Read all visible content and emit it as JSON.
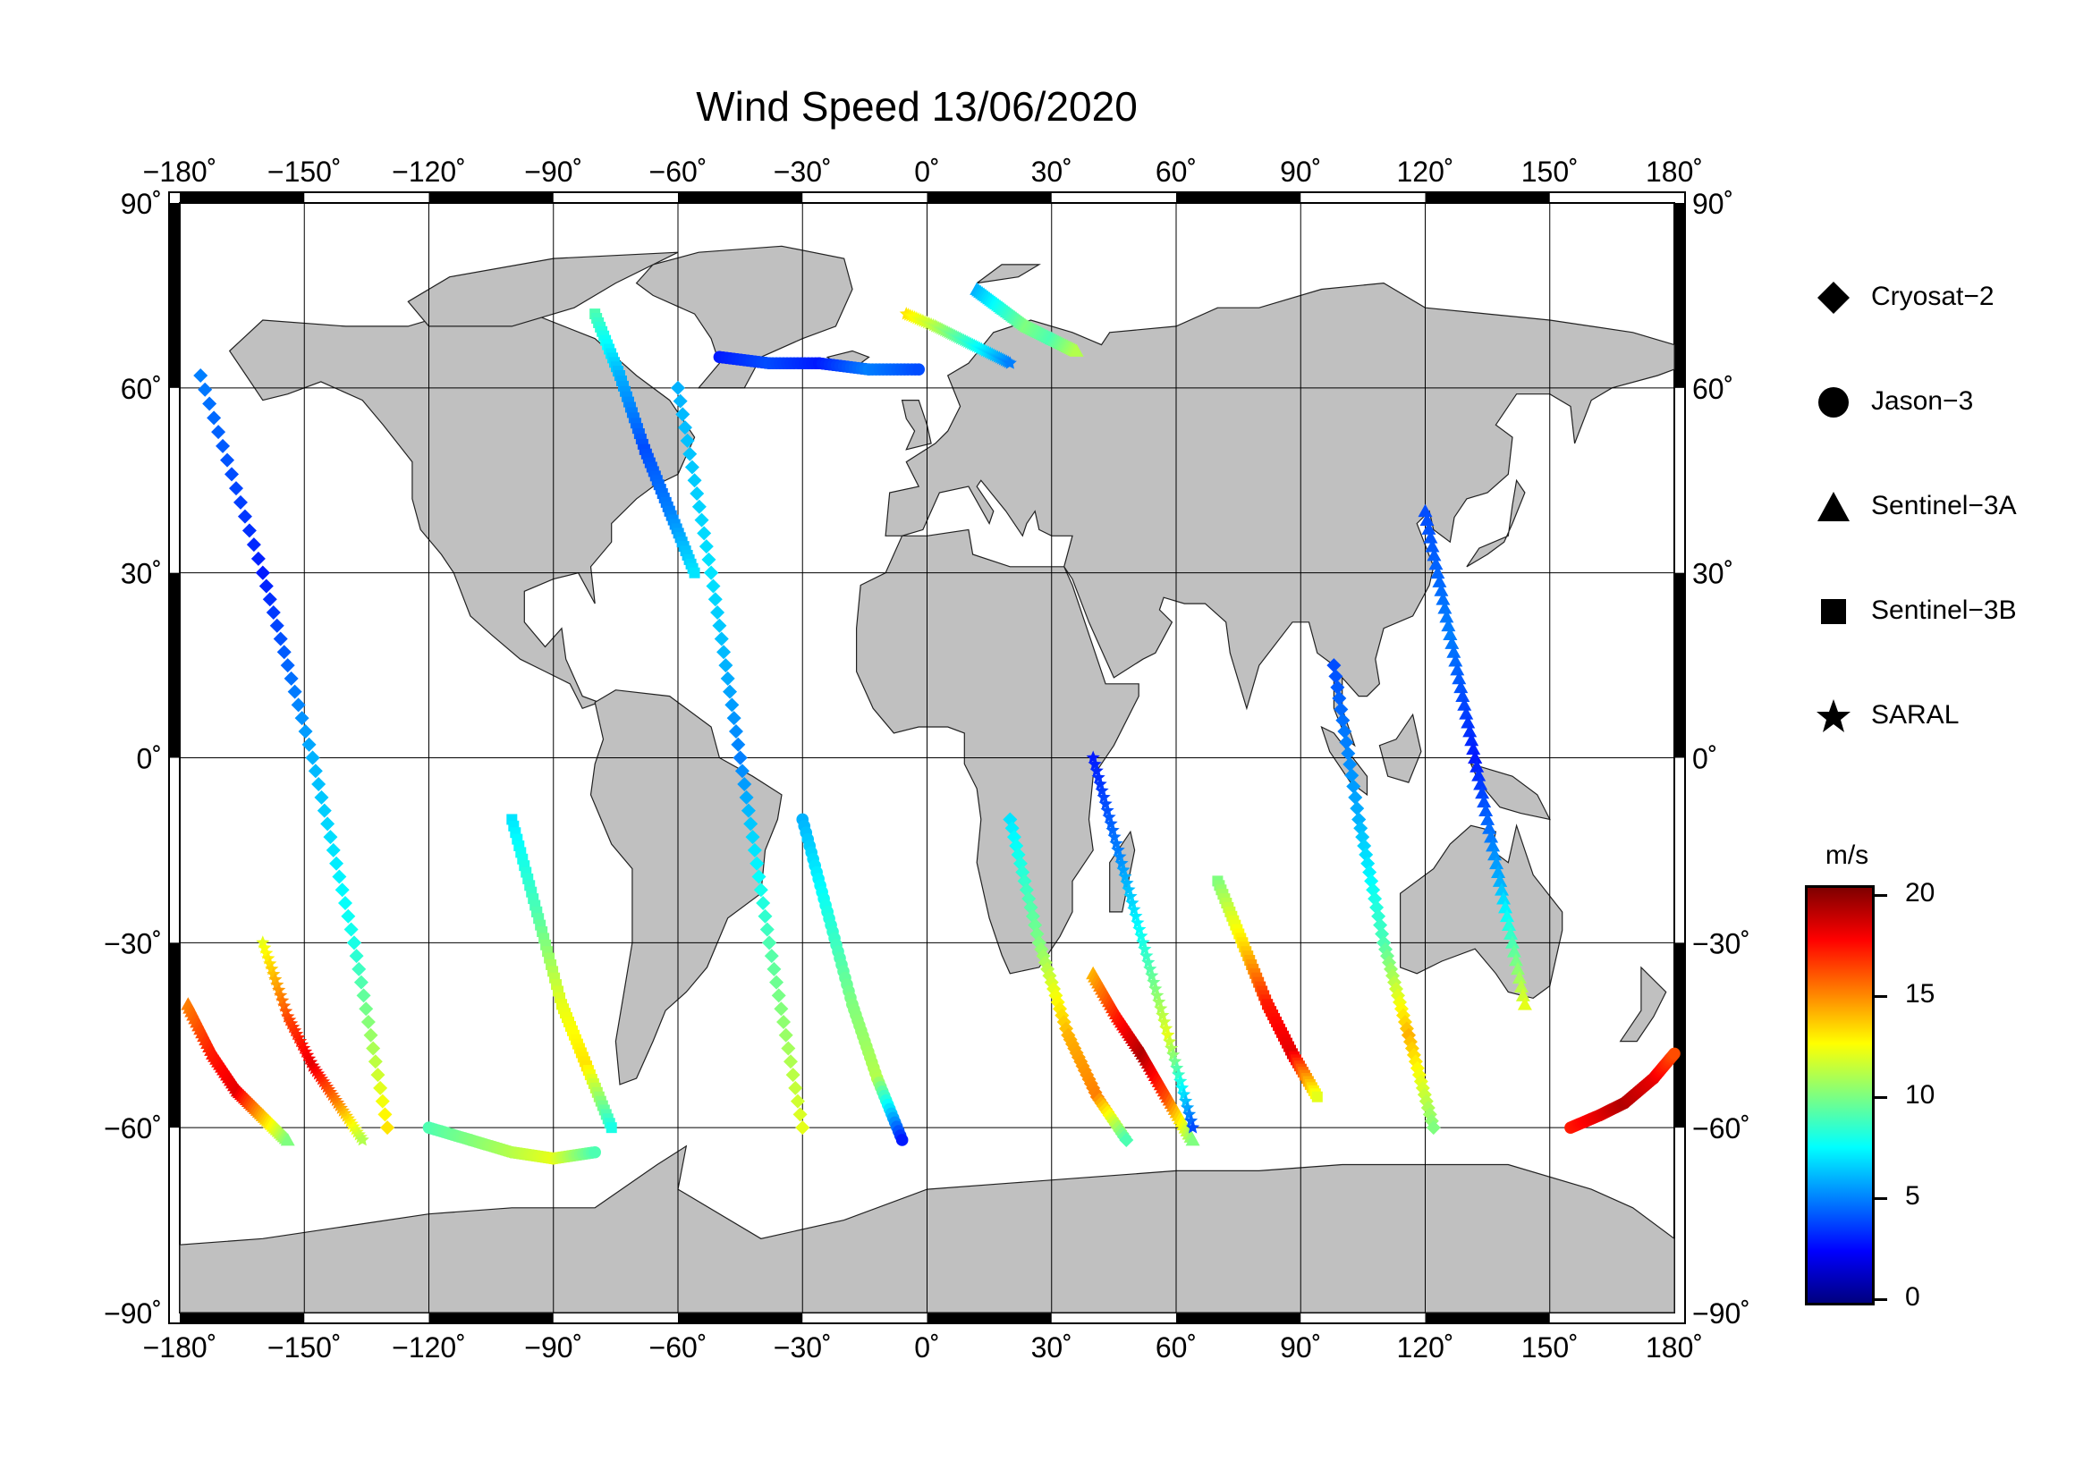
{
  "title": "Wind Speed 13/06/2020",
  "map": {
    "projection": "equirectangular",
    "lon_range": [
      -180,
      180
    ],
    "lat_range": [
      -90,
      90
    ],
    "land_color": "#c0c0c0",
    "ocean_color": "#ffffff",
    "grid": true,
    "lon_ticks": [
      "−180˚",
      "−150˚",
      "−120˚",
      "−90˚",
      "−60˚",
      "−30˚",
      "0˚",
      "30˚",
      "60˚",
      "90˚",
      "120˚",
      "150˚",
      "180˚"
    ],
    "lat_ticks_left": [
      "90˚",
      "60˚",
      "30˚",
      "0˚",
      "−30˚",
      "−60˚",
      "−90˚"
    ],
    "lat_ticks_right": [
      "90˚",
      "60˚",
      "30˚",
      "0˚",
      "−30˚",
      "−60˚",
      "−90˚"
    ]
  },
  "legend": {
    "items": [
      {
        "label": "Cryosat−2",
        "symbol": "diamond-icon"
      },
      {
        "label": "Jason−3",
        "symbol": "circle-icon"
      },
      {
        "label": "Sentinel−3A",
        "symbol": "triangle-icon"
      },
      {
        "label": "Sentinel−3B",
        "symbol": "square-icon"
      },
      {
        "label": "SARAL",
        "symbol": "star-icon"
      }
    ]
  },
  "colorbar": {
    "unit": "m/s",
    "min": 0,
    "max": 20,
    "ticks": [
      "20",
      "15",
      "10",
      "5",
      "0"
    ],
    "colormap": "jet",
    "colors": [
      "#00007f",
      "#0000ff",
      "#007fff",
      "#00ffff",
      "#7fff7f",
      "#ffff00",
      "#ff7f00",
      "#ff0000",
      "#7f0000"
    ]
  },
  "chart_data": {
    "type": "scatter",
    "title": "Wind Speed 13/06/2020",
    "xlabel": "",
    "ylabel": "",
    "xlim": [
      -180,
      180
    ],
    "ylim": [
      -90,
      90
    ],
    "color_variable": "wind speed (m/s)",
    "color_range": [
      0,
      20
    ],
    "series": [
      {
        "name": "Cryosat−2",
        "marker": "diamond",
        "tracks": [
          {
            "lon": [
              -175,
              -160,
              -148,
              -138,
              -130
            ],
            "lat": [
              62,
              30,
              0,
              -30,
              -60
            ],
            "speed": [
              5,
              3,
              6,
              8,
              13
            ]
          },
          {
            "lon": [
              -60,
              -52,
              -45,
              -38,
              -30
            ],
            "lat": [
              60,
              30,
              0,
              -30,
              -60
            ],
            "speed": [
              6,
              7,
              5,
              9,
              12
            ]
          },
          {
            "lon": [
              20,
              27,
              34,
              41,
              48
            ],
            "lat": [
              -10,
              -30,
              -45,
              -55,
              -62
            ],
            "speed": [
              7,
              10,
              14,
              15,
              9
            ]
          },
          {
            "lon": [
              98,
              104,
              110,
              116,
              122
            ],
            "lat": [
              15,
              -10,
              -30,
              -45,
              -60
            ],
            "speed": [
              4,
              6,
              9,
              14,
              10
            ]
          }
        ]
      },
      {
        "name": "Jason−3",
        "marker": "circle",
        "tracks": [
          {
            "lon": [
              -50,
              -38,
              -26,
              -14,
              -2
            ],
            "lat": [
              65,
              64,
              64,
              63,
              63
            ],
            "speed": [
              3,
              4,
              3,
              5,
              4
            ]
          },
          {
            "lon": [
              -120,
              -110,
              -100,
              -90,
              -80
            ],
            "lat": [
              -60,
              -62,
              -64,
              -65,
              -64
            ],
            "speed": [
              9,
              10,
              11,
              12,
              9
            ]
          },
          {
            "lon": [
              155,
              162,
              168,
              175,
              180
            ],
            "lat": [
              -60,
              -58,
              -56,
              -52,
              -48
            ],
            "speed": [
              17,
              18,
              19,
              18,
              16
            ]
          },
          {
            "lon": [
              -30,
              -24,
              -18,
              -12,
              -6
            ],
            "lat": [
              -10,
              -25,
              -40,
              -52,
              -62
            ],
            "speed": [
              6,
              8,
              10,
              11,
              3
            ]
          }
        ]
      },
      {
        "name": "Sentinel−3A",
        "marker": "triangle",
        "tracks": [
          {
            "lon": [
              12,
              18,
              24,
              30,
              36
            ],
            "lat": [
              76,
              73,
              70,
              68,
              66
            ],
            "speed": [
              6,
              8,
              10,
              9,
              11
            ]
          },
          {
            "lon": [
              40,
              46,
              52,
              58,
              64
            ],
            "lat": [
              -35,
              -42,
              -48,
              -55,
              -62
            ],
            "speed": [
              14,
              17,
              19,
              16,
              10
            ]
          },
          {
            "lon": [
              -178,
              -172,
              -166,
              -160,
              -154
            ],
            "lat": [
              -40,
              -48,
              -54,
              -58,
              -62
            ],
            "speed": [
              15,
              17,
              18,
              14,
              10
            ]
          },
          {
            "lon": [
              120,
              126,
              132,
              138,
              144
            ],
            "lat": [
              40,
              20,
              0,
              -20,
              -40
            ],
            "speed": [
              4,
              5,
              3,
              6,
              12
            ]
          }
        ]
      },
      {
        "name": "Sentinel−3B",
        "marker": "square",
        "tracks": [
          {
            "lon": [
              -80,
              -74,
              -68,
              -62,
              -56
            ],
            "lat": [
              72,
              62,
              50,
              40,
              30
            ],
            "speed": [
              9,
              6,
              4,
              5,
              7
            ]
          },
          {
            "lon": [
              -100,
              -94,
              -88,
              -82,
              -76
            ],
            "lat": [
              -10,
              -25,
              -40,
              -50,
              -60
            ],
            "speed": [
              7,
              9,
              12,
              13,
              8
            ]
          },
          {
            "lon": [
              70,
              76,
              82,
              88,
              94
            ],
            "lat": [
              -20,
              -30,
              -40,
              -48,
              -55
            ],
            "speed": [
              10,
              13,
              17,
              18,
              12
            ]
          }
        ]
      },
      {
        "name": "SARAL",
        "marker": "star",
        "tracks": [
          {
            "lon": [
              -5,
              2,
              8,
              14,
              20
            ],
            "lat": [
              72,
              70,
              68,
              66,
              64
            ],
            "speed": [
              13,
              11,
              9,
              7,
              5
            ]
          },
          {
            "lon": [
              -160,
              -154,
              -148,
              -142,
              -136
            ],
            "lat": [
              -30,
              -42,
              -50,
              -56,
              -62
            ],
            "speed": [
              12,
              16,
              18,
              15,
              11
            ]
          },
          {
            "lon": [
              40,
              46,
              52,
              58,
              64
            ],
            "lat": [
              0,
              -15,
              -30,
              -45,
              -60
            ],
            "speed": [
              3,
              5,
              8,
              12,
              4
            ]
          }
        ]
      }
    ]
  }
}
